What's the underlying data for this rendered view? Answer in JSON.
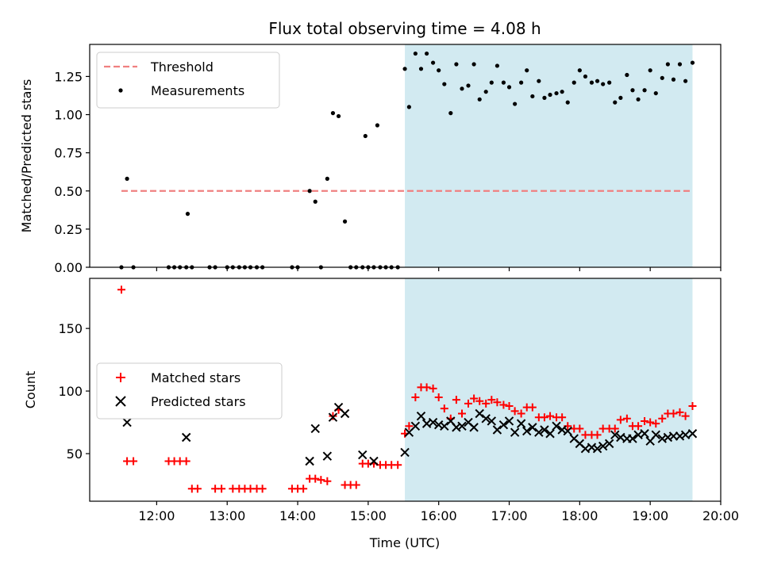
{
  "chart_data": {
    "title": "Flux total observing time = 4.08 h",
    "xlabel": "Time (UTC)",
    "x_ticks": [
      12,
      13,
      14,
      15,
      16,
      17,
      18,
      19,
      20
    ],
    "x_tick_labels": [
      "12:00",
      "13:00",
      "14:00",
      "15:00",
      "16:00",
      "17:00",
      "18:00",
      "19:00",
      "20:00"
    ],
    "xlim": [
      11.05,
      20.0
    ],
    "shaded_region": {
      "x": [
        15.52,
        19.6
      ],
      "color": "#add8e6"
    },
    "panels": [
      {
        "type": "scatter",
        "ylabel": "Matched/Predicted stars",
        "ylim": [
          0,
          1.46
        ],
        "y_ticks": [
          0.0,
          0.25,
          0.5,
          0.75,
          1.0,
          1.25
        ],
        "y_tick_labels": [
          "0.00",
          "0.25",
          "0.50",
          "0.75",
          "1.00",
          "1.25"
        ],
        "legend_position": "upper-left",
        "threshold": {
          "name": "Threshold",
          "y": 0.5,
          "x": [
            11.5,
            19.6
          ],
          "color": "#f08080"
        },
        "series": [
          {
            "name": "Measurements",
            "marker": "dot",
            "color": "#000000",
            "x": [
              11.5,
              11.58,
              11.67,
              12.17,
              12.25,
              12.33,
              12.42,
              12.44,
              12.5,
              12.75,
              12.83,
              13.0,
              13.08,
              13.17,
              13.25,
              13.33,
              13.42,
              13.5,
              13.92,
              14.0,
              14.17,
              14.25,
              14.33,
              14.42,
              14.5,
              14.58,
              14.67,
              14.75,
              14.83,
              14.92,
              14.96,
              15.0,
              15.08,
              15.13,
              15.17,
              15.25,
              15.33,
              15.42,
              15.52,
              15.58,
              15.67,
              15.75,
              15.83,
              15.92,
              16.0,
              16.08,
              16.17,
              16.25,
              16.33,
              16.42,
              16.5,
              16.58,
              16.67,
              16.75,
              16.83,
              16.92,
              17.0,
              17.08,
              17.17,
              17.25,
              17.33,
              17.42,
              17.5,
              17.58,
              17.67,
              17.75,
              17.83,
              17.92,
              18.0,
              18.08,
              18.17,
              18.25,
              18.33,
              18.42,
              18.5,
              18.58,
              18.67,
              18.75,
              18.83,
              18.92,
              19.0,
              19.08,
              19.17,
              19.25,
              19.33,
              19.42,
              19.5,
              19.6
            ],
            "y": [
              0.0,
              0.58,
              0.0,
              0.0,
              0.0,
              0.0,
              0.0,
              0.35,
              0.0,
              0.0,
              0.0,
              0.0,
              0.0,
              0.0,
              0.0,
              0.0,
              0.0,
              0.0,
              0.0,
              0.0,
              0.5,
              0.43,
              0.0,
              0.58,
              1.01,
              0.99,
              0.3,
              0.0,
              0.0,
              0.0,
              0.86,
              0.0,
              0.0,
              0.93,
              0.0,
              0.0,
              0.0,
              0.0,
              1.3,
              1.05,
              1.4,
              1.3,
              1.4,
              1.34,
              1.29,
              1.2,
              1.01,
              1.33,
              1.17,
              1.19,
              1.33,
              1.1,
              1.15,
              1.21,
              1.32,
              1.21,
              1.18,
              1.07,
              1.21,
              1.29,
              1.12,
              1.22,
              1.11,
              1.13,
              1.14,
              1.15,
              1.08,
              1.21,
              1.29,
              1.25,
              1.21,
              1.22,
              1.2,
              1.21,
              1.08,
              1.11,
              1.26,
              1.16,
              1.1,
              1.16,
              1.29,
              1.14,
              1.24,
              1.33,
              1.23,
              1.33,
              1.22,
              1.34
            ]
          }
        ]
      },
      {
        "type": "scatter",
        "ylabel": "Count",
        "ylim": [
          12,
          190
        ],
        "y_ticks": [
          50,
          100,
          150
        ],
        "y_tick_labels": [
          "50",
          "100",
          "150"
        ],
        "legend_position": "center-left",
        "series": [
          {
            "name": "Matched stars",
            "marker": "plus",
            "color": "#ff0000",
            "x": [
              11.5,
              11.58,
              11.67,
              12.17,
              12.25,
              12.33,
              12.42,
              12.5,
              12.58,
              12.83,
              12.92,
              13.08,
              13.17,
              13.25,
              13.33,
              13.42,
              13.5,
              13.92,
              14.0,
              14.08,
              14.17,
              14.25,
              14.33,
              14.42,
              14.5,
              14.58,
              14.67,
              14.75,
              14.83,
              14.92,
              15.0,
              15.08,
              15.17,
              15.25,
              15.33,
              15.42,
              15.52,
              15.58,
              15.67,
              15.75,
              15.83,
              15.92,
              16.0,
              16.08,
              16.17,
              16.25,
              16.33,
              16.42,
              16.5,
              16.58,
              16.67,
              16.75,
              16.83,
              16.92,
              17.0,
              17.08,
              17.17,
              17.25,
              17.33,
              17.42,
              17.5,
              17.58,
              17.67,
              17.75,
              17.83,
              17.92,
              18.0,
              18.08,
              18.17,
              18.25,
              18.33,
              18.42,
              18.5,
              18.58,
              18.67,
              18.75,
              18.83,
              18.92,
              19.0,
              19.08,
              19.17,
              19.25,
              19.33,
              19.42,
              19.5,
              19.6
            ],
            "y": [
              181,
              44,
              44,
              44,
              44,
              44,
              44,
              22,
              22,
              22,
              22,
              22,
              22,
              22,
              22,
              22,
              22,
              22,
              22,
              22,
              30,
              30,
              29,
              28,
              80,
              85,
              25,
              25,
              25,
              42,
              42,
              42,
              41,
              41,
              41,
              41,
              66,
              72,
              95,
              103,
              103,
              102,
              95,
              86,
              78,
              93,
              82,
              90,
              94,
              92,
              90,
              93,
              91,
              89,
              88,
              84,
              82,
              87,
              87,
              79,
              79,
              80,
              79,
              79,
              72,
              70,
              70,
              65,
              65,
              65,
              70,
              70,
              70,
              77,
              78,
              72,
              72,
              76,
              75,
              74,
              78,
              82,
              82,
              83,
              80,
              88
            ]
          },
          {
            "name": "Predicted stars",
            "marker": "x",
            "color": "#000000",
            "x": [
              11.58,
              12.42,
              14.17,
              14.25,
              14.42,
              14.5,
              14.58,
              14.67,
              14.92,
              15.08,
              15.52,
              15.58,
              15.67,
              15.75,
              15.83,
              15.92,
              16.0,
              16.08,
              16.17,
              16.25,
              16.33,
              16.42,
              16.5,
              16.58,
              16.67,
              16.75,
              16.83,
              16.92,
              17.0,
              17.08,
              17.17,
              17.25,
              17.33,
              17.42,
              17.5,
              17.58,
              17.67,
              17.75,
              17.83,
              17.92,
              18.0,
              18.08,
              18.17,
              18.25,
              18.33,
              18.42,
              18.5,
              18.58,
              18.67,
              18.75,
              18.83,
              18.92,
              19.0,
              19.08,
              19.17,
              19.25,
              19.33,
              19.42,
              19.5,
              19.6
            ],
            "y": [
              75,
              63,
              44,
              70,
              48,
              79,
              87,
              82,
              49,
              44,
              51,
              67,
              72,
              80,
              74,
              75,
              73,
              72,
              76,
              71,
              72,
              75,
              71,
              82,
              78,
              76,
              69,
              73,
              76,
              67,
              74,
              68,
              71,
              67,
              69,
              66,
              72,
              69,
              68,
              62,
              58,
              54,
              55,
              54,
              56,
              58,
              65,
              63,
              62,
              62,
              65,
              66,
              60,
              65,
              62,
              63,
              64,
              64,
              65,
              66
            ]
          }
        ]
      }
    ]
  }
}
